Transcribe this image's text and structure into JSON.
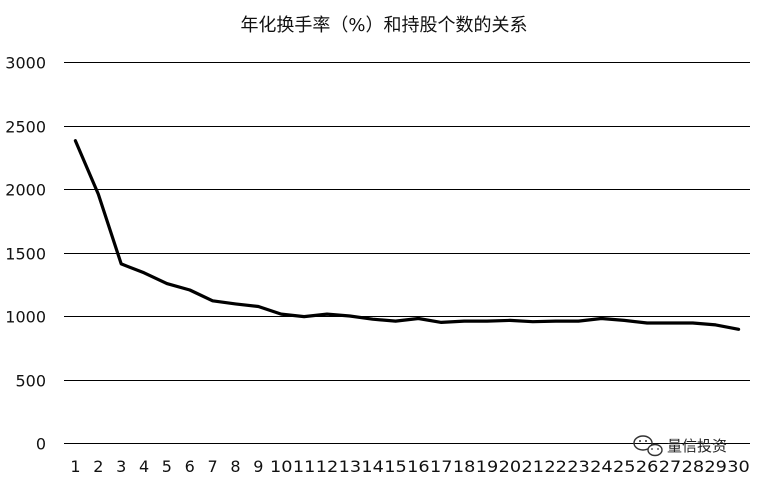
{
  "chart_data": {
    "type": "line",
    "title": "年化换手率（%）和持股个数的关系",
    "xlabel": "",
    "ylabel": "",
    "ylim": [
      0,
      3000
    ],
    "yticks": [
      0,
      500,
      1000,
      1500,
      2000,
      2500,
      3000
    ],
    "grid": true,
    "legend": "none",
    "categories": [
      "1",
      "2",
      "3",
      "4",
      "5",
      "6",
      "7",
      "8",
      "9",
      "10",
      "11",
      "12",
      "13",
      "14",
      "15",
      "16",
      "17",
      "18",
      "19",
      "20",
      "21",
      "22",
      "23",
      "24",
      "25",
      "26",
      "27",
      "28",
      "29",
      "30"
    ],
    "series": [
      {
        "values": [
          2380,
          1960,
          1410,
          1340,
          1255,
          1205,
          1120,
          1095,
          1075,
          1015,
          995,
          1015,
          1000,
          975,
          960,
          980,
          950,
          960,
          960,
          965,
          955,
          960,
          960,
          980,
          965,
          945,
          945,
          945,
          930,
          895
        ],
        "color": "#000000"
      }
    ]
  },
  "watermark": {
    "icon": "wechat-icon",
    "text": "量信投资"
  }
}
